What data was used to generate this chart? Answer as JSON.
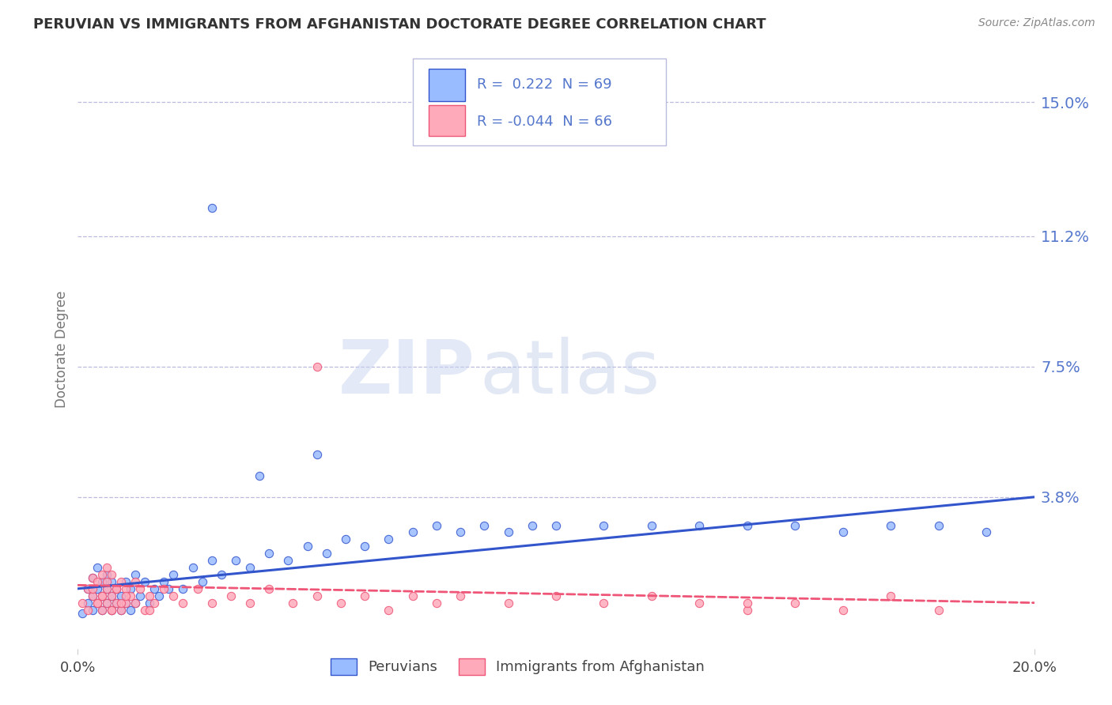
{
  "title": "PERUVIAN VS IMMIGRANTS FROM AFGHANISTAN DOCTORATE DEGREE CORRELATION CHART",
  "source_text": "Source: ZipAtlas.com",
  "ylabel": "Doctorate Degree",
  "y_ticklabels_right": [
    "3.8%",
    "7.5%",
    "11.2%",
    "15.0%"
  ],
  "y_tick_values": [
    0.038,
    0.075,
    0.112,
    0.15
  ],
  "xlim": [
    0.0,
    0.2
  ],
  "ylim": [
    -0.005,
    0.165
  ],
  "color_blue": "#99bbff",
  "color_pink": "#ffaabb",
  "color_blue_line": "#3355cc",
  "color_pink_line": "#ee5577",
  "color_title": "#333333",
  "color_axis_labels": "#5577cc",
  "background_color": "#ffffff",
  "grid_color": "#bbbbdd",
  "watermark_zip": "ZIP",
  "watermark_atlas": "atlas",
  "peruvian_x": [
    0.001,
    0.002,
    0.002,
    0.003,
    0.003,
    0.003,
    0.004,
    0.004,
    0.004,
    0.005,
    0.005,
    0.005,
    0.006,
    0.006,
    0.006,
    0.007,
    0.007,
    0.007,
    0.008,
    0.008,
    0.009,
    0.009,
    0.01,
    0.01,
    0.011,
    0.011,
    0.012,
    0.012,
    0.013,
    0.014,
    0.015,
    0.016,
    0.017,
    0.018,
    0.019,
    0.02,
    0.022,
    0.024,
    0.026,
    0.028,
    0.03,
    0.033,
    0.036,
    0.04,
    0.044,
    0.048,
    0.052,
    0.056,
    0.06,
    0.065,
    0.07,
    0.075,
    0.08,
    0.085,
    0.09,
    0.095,
    0.1,
    0.11,
    0.12,
    0.13,
    0.14,
    0.15,
    0.16,
    0.17,
    0.18,
    0.19,
    0.05,
    0.038,
    0.028
  ],
  "peruvian_y": [
    0.005,
    0.008,
    0.012,
    0.006,
    0.01,
    0.015,
    0.008,
    0.012,
    0.018,
    0.006,
    0.01,
    0.014,
    0.008,
    0.012,
    0.016,
    0.006,
    0.01,
    0.014,
    0.008,
    0.012,
    0.006,
    0.01,
    0.008,
    0.014,
    0.006,
    0.012,
    0.008,
    0.016,
    0.01,
    0.014,
    0.008,
    0.012,
    0.01,
    0.014,
    0.012,
    0.016,
    0.012,
    0.018,
    0.014,
    0.02,
    0.016,
    0.02,
    0.018,
    0.022,
    0.02,
    0.024,
    0.022,
    0.026,
    0.024,
    0.026,
    0.028,
    0.03,
    0.028,
    0.03,
    0.028,
    0.03,
    0.03,
    0.03,
    0.03,
    0.03,
    0.03,
    0.03,
    0.028,
    0.03,
    0.03,
    0.028,
    0.05,
    0.044,
    0.12
  ],
  "afghan_x": [
    0.001,
    0.002,
    0.002,
    0.003,
    0.003,
    0.004,
    0.004,
    0.005,
    0.005,
    0.005,
    0.006,
    0.006,
    0.006,
    0.007,
    0.007,
    0.007,
    0.008,
    0.008,
    0.009,
    0.009,
    0.01,
    0.01,
    0.011,
    0.012,
    0.013,
    0.014,
    0.015,
    0.016,
    0.018,
    0.02,
    0.022,
    0.025,
    0.028,
    0.032,
    0.036,
    0.04,
    0.045,
    0.05,
    0.055,
    0.06,
    0.065,
    0.07,
    0.075,
    0.08,
    0.09,
    0.1,
    0.11,
    0.12,
    0.13,
    0.14,
    0.15,
    0.16,
    0.17,
    0.18,
    0.003,
    0.004,
    0.005,
    0.006,
    0.007,
    0.008,
    0.009,
    0.01,
    0.05,
    0.14,
    0.012,
    0.015
  ],
  "afghan_y": [
    0.008,
    0.012,
    0.006,
    0.01,
    0.015,
    0.008,
    0.014,
    0.006,
    0.01,
    0.016,
    0.008,
    0.012,
    0.018,
    0.006,
    0.01,
    0.016,
    0.008,
    0.012,
    0.006,
    0.014,
    0.008,
    0.012,
    0.01,
    0.008,
    0.012,
    0.006,
    0.01,
    0.008,
    0.012,
    0.01,
    0.008,
    0.012,
    0.008,
    0.01,
    0.008,
    0.012,
    0.008,
    0.01,
    0.008,
    0.01,
    0.006,
    0.01,
    0.008,
    0.01,
    0.008,
    0.01,
    0.008,
    0.01,
    0.008,
    0.006,
    0.008,
    0.006,
    0.01,
    0.006,
    0.012,
    0.008,
    0.01,
    0.014,
    0.006,
    0.012,
    0.008,
    0.01,
    0.075,
    0.008,
    0.014,
    0.006
  ],
  "trend_peru_start": 0.012,
  "trend_peru_end": 0.038,
  "trend_afghan_start": 0.013,
  "trend_afghan_end": 0.008
}
